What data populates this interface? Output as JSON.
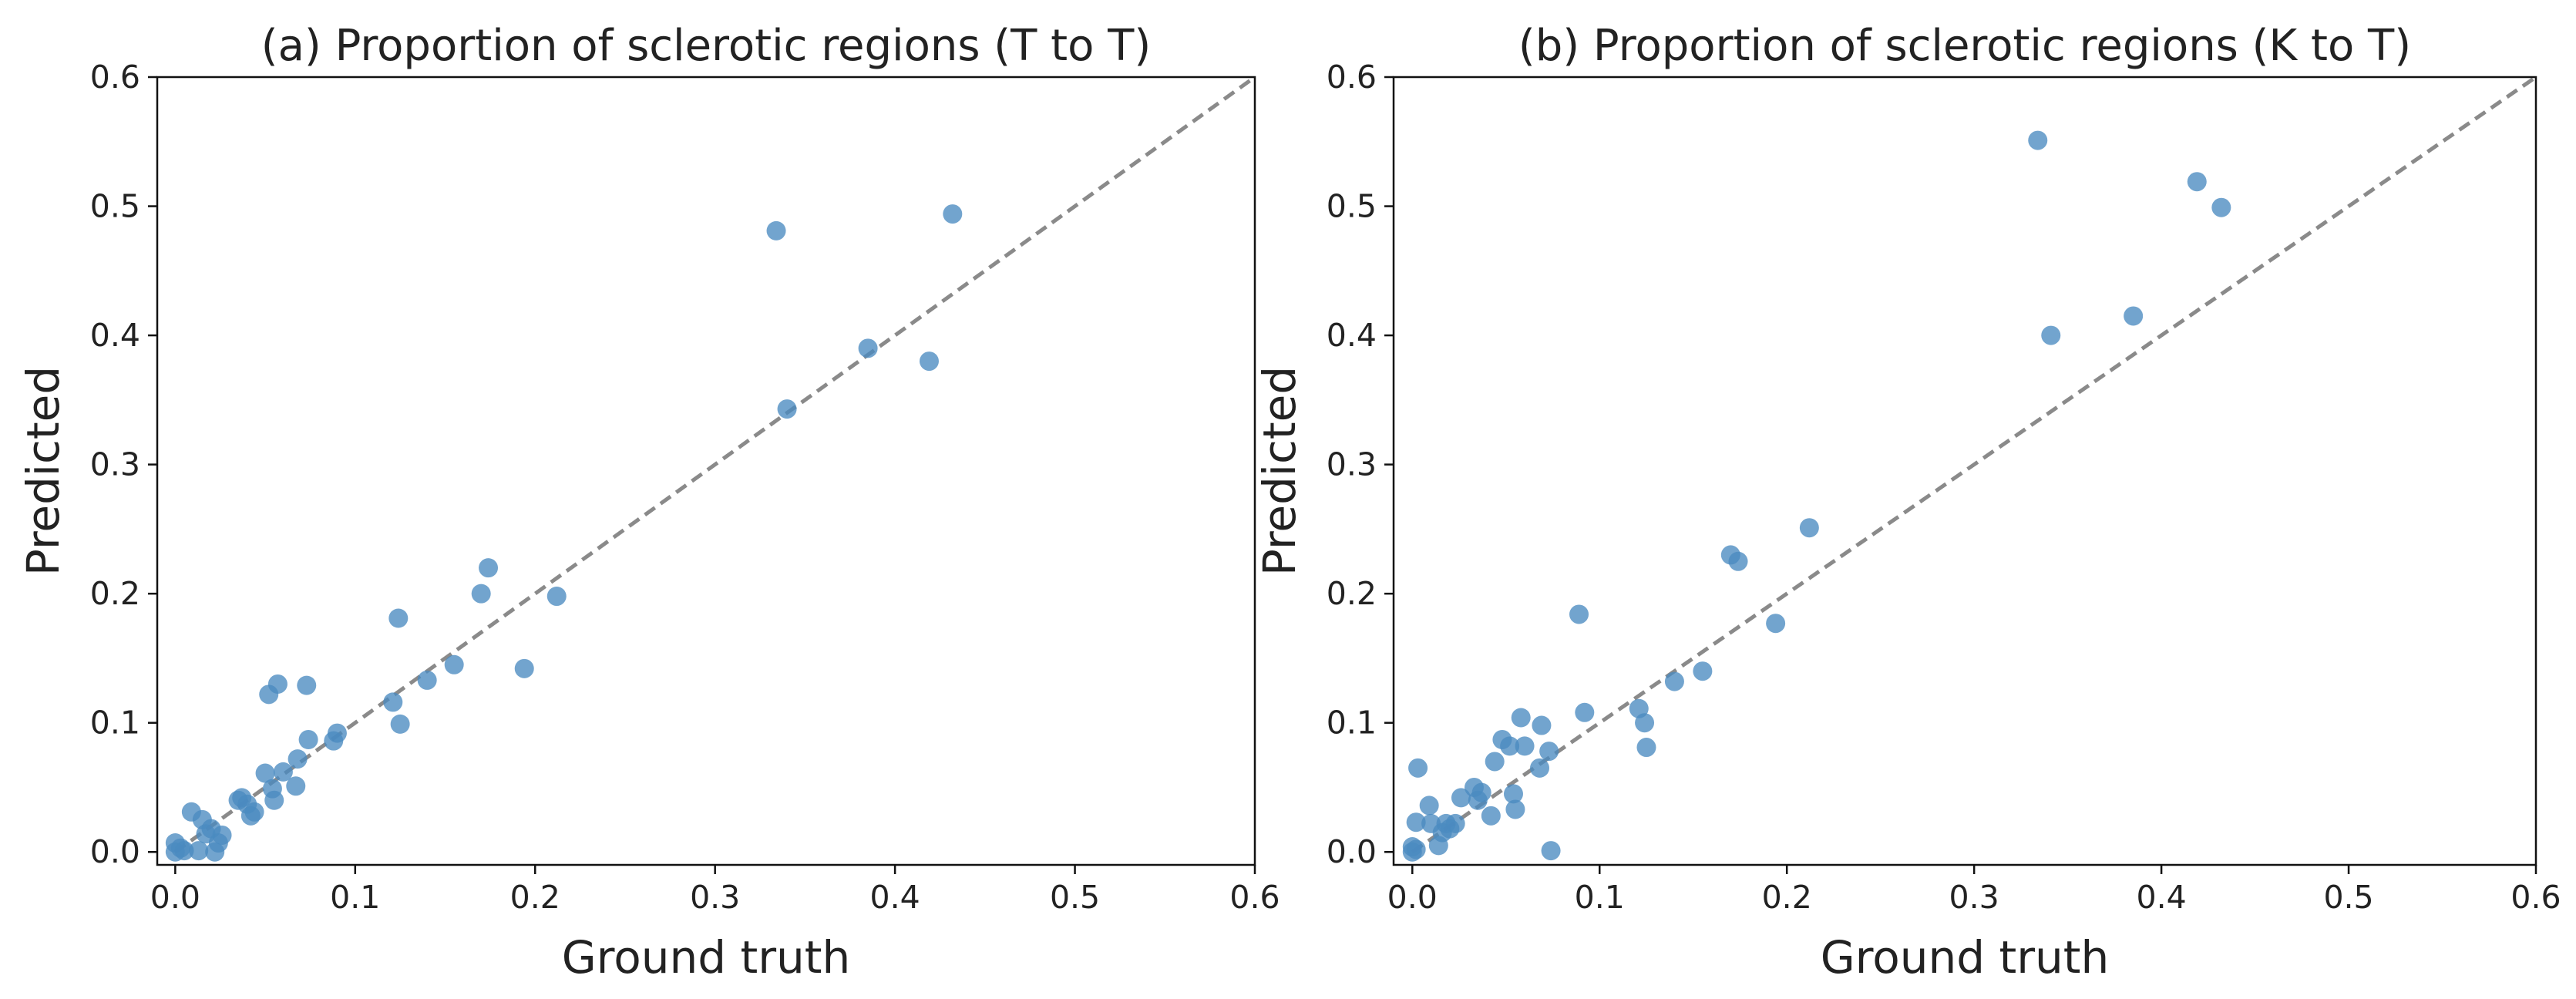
{
  "chart_data": [
    {
      "type": "scatter",
      "title": "(a)  Proportion of sclerotic regions (T to T)",
      "xlabel": "Ground truth",
      "ylabel": "Predicted",
      "xlim": [
        -0.01,
        0.6
      ],
      "ylim": [
        -0.01,
        0.6
      ],
      "xticks": [
        0.0,
        0.1,
        0.2,
        0.3,
        0.4,
        0.5,
        0.6
      ],
      "xtick_labels": [
        "0.0",
        "0.1",
        "0.2",
        "0.3",
        "0.4",
        "0.5",
        "0.6"
      ],
      "yticks": [
        0.0,
        0.1,
        0.2,
        0.3,
        0.4,
        0.5,
        0.6
      ],
      "ytick_labels": [
        "0.0",
        "0.1",
        "0.2",
        "0.3",
        "0.4",
        "0.5",
        "0.6"
      ],
      "reference_line": {
        "style": "dashed",
        "color": "#8a8a8a",
        "from": [
          0,
          0
        ],
        "to": [
          0.6,
          0.6
        ]
      },
      "marker_color": "#4a8ac0",
      "points": [
        [
          0.0,
          0.0
        ],
        [
          0.0,
          0.007
        ],
        [
          0.003,
          0.003
        ],
        [
          0.005,
          0.001
        ],
        [
          0.009,
          0.031
        ],
        [
          0.013,
          0.001
        ],
        [
          0.015,
          0.025
        ],
        [
          0.017,
          0.014
        ],
        [
          0.02,
          0.018
        ],
        [
          0.022,
          0.0
        ],
        [
          0.024,
          0.007
        ],
        [
          0.026,
          0.013
        ],
        [
          0.035,
          0.04
        ],
        [
          0.037,
          0.042
        ],
        [
          0.04,
          0.037
        ],
        [
          0.042,
          0.028
        ],
        [
          0.044,
          0.031
        ],
        [
          0.05,
          0.061
        ],
        [
          0.052,
          0.122
        ],
        [
          0.054,
          0.049
        ],
        [
          0.055,
          0.04
        ],
        [
          0.057,
          0.13
        ],
        [
          0.06,
          0.062
        ],
        [
          0.067,
          0.051
        ],
        [
          0.068,
          0.072
        ],
        [
          0.073,
          0.129
        ],
        [
          0.074,
          0.087
        ],
        [
          0.088,
          0.086
        ],
        [
          0.09,
          0.092
        ],
        [
          0.121,
          0.116
        ],
        [
          0.124,
          0.181
        ],
        [
          0.125,
          0.099
        ],
        [
          0.14,
          0.133
        ],
        [
          0.155,
          0.145
        ],
        [
          0.17,
          0.2
        ],
        [
          0.174,
          0.22
        ],
        [
          0.194,
          0.142
        ],
        [
          0.212,
          0.198
        ],
        [
          0.334,
          0.481
        ],
        [
          0.34,
          0.343
        ],
        [
          0.385,
          0.39
        ],
        [
          0.419,
          0.38
        ],
        [
          0.432,
          0.494
        ]
      ]
    },
    {
      "type": "scatter",
      "title": "(b)  Proportion of sclerotic regions (K to T)",
      "xlabel": "Ground truth",
      "ylabel": "Predicted",
      "xlim": [
        -0.01,
        0.6
      ],
      "ylim": [
        -0.01,
        0.6
      ],
      "xticks": [
        0.0,
        0.1,
        0.2,
        0.3,
        0.4,
        0.5,
        0.6
      ],
      "xtick_labels": [
        "0.0",
        "0.1",
        "0.2",
        "0.3",
        "0.4",
        "0.5",
        "0.6"
      ],
      "yticks": [
        0.0,
        0.1,
        0.2,
        0.3,
        0.4,
        0.5,
        0.6
      ],
      "ytick_labels": [
        "0.0",
        "0.1",
        "0.2",
        "0.3",
        "0.4",
        "0.5",
        "0.6"
      ],
      "reference_line": {
        "style": "dashed",
        "color": "#8a8a8a",
        "from": [
          0,
          0
        ],
        "to": [
          0.6,
          0.6
        ]
      },
      "marker_color": "#4a8ac0",
      "points": [
        [
          0.0,
          0.0
        ],
        [
          0.0,
          0.004
        ],
        [
          0.002,
          0.002
        ],
        [
          0.002,
          0.023
        ],
        [
          0.003,
          0.065
        ],
        [
          0.009,
          0.036
        ],
        [
          0.01,
          0.022
        ],
        [
          0.014,
          0.005
        ],
        [
          0.016,
          0.015
        ],
        [
          0.018,
          0.022
        ],
        [
          0.02,
          0.018
        ],
        [
          0.023,
          0.022
        ],
        [
          0.026,
          0.042
        ],
        [
          0.033,
          0.05
        ],
        [
          0.035,
          0.04
        ],
        [
          0.037,
          0.046
        ],
        [
          0.042,
          0.028
        ],
        [
          0.044,
          0.07
        ],
        [
          0.048,
          0.087
        ],
        [
          0.052,
          0.082
        ],
        [
          0.054,
          0.045
        ],
        [
          0.055,
          0.033
        ],
        [
          0.058,
          0.104
        ],
        [
          0.06,
          0.082
        ],
        [
          0.068,
          0.065
        ],
        [
          0.069,
          0.098
        ],
        [
          0.073,
          0.078
        ],
        [
          0.074,
          0.001
        ],
        [
          0.089,
          0.184
        ],
        [
          0.092,
          0.108
        ],
        [
          0.121,
          0.111
        ],
        [
          0.124,
          0.1
        ],
        [
          0.125,
          0.081
        ],
        [
          0.14,
          0.132
        ],
        [
          0.155,
          0.14
        ],
        [
          0.17,
          0.23
        ],
        [
          0.174,
          0.225
        ],
        [
          0.194,
          0.177
        ],
        [
          0.212,
          0.251
        ],
        [
          0.334,
          0.551
        ],
        [
          0.341,
          0.4
        ],
        [
          0.385,
          0.415
        ],
        [
          0.419,
          0.519
        ],
        [
          0.432,
          0.499
        ]
      ]
    }
  ]
}
